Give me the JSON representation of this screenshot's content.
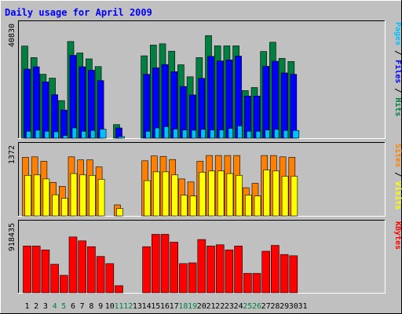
{
  "chart_data": {
    "type": "bar",
    "title": "Daily usage for April 2009",
    "days": [
      "1",
      "2",
      "3",
      "4",
      "5",
      "6",
      "7",
      "8",
      "9",
      "10",
      "11",
      "12",
      "13",
      "14",
      "15",
      "16",
      "17",
      "18",
      "19",
      "20",
      "21",
      "22",
      "23",
      "24",
      "25",
      "26",
      "27",
      "28",
      "29",
      "30",
      "31"
    ],
    "weekend_days": [
      4,
      5,
      11,
      12,
      18,
      19,
      25,
      26
    ],
    "panels": [
      {
        "id": "hits-files-pages",
        "max_label": "40830",
        "ymax": 40830,
        "legend": [
          "Pages",
          " / ",
          "Files",
          " / ",
          "Hits"
        ],
        "series": [
          {
            "name": "Hits",
            "color": "#008040",
            "values": [
              36000,
              31500,
              25000,
              23500,
              14700,
              37800,
              33300,
              31000,
              28000,
              null,
              5300,
              null,
              null,
              32200,
              36400,
              36900,
              34000,
              28700,
              24000,
              31500,
              40100,
              36100,
              36100,
              36100,
              18600,
              19800,
              33900,
              37500,
              31200,
              30000,
              null
            ]
          },
          {
            "name": "Files",
            "color": "#0000ff",
            "values": [
              27000,
              27900,
              22000,
              17000,
              11000,
              32400,
              27900,
              26600,
              22500,
              null,
              4000,
              null,
              null,
              25000,
              27500,
              28800,
              26000,
              20200,
              16900,
              23400,
              32000,
              30200,
              30600,
              32100,
              16500,
              16500,
              28100,
              30100,
              25500,
              25000,
              null
            ]
          },
          {
            "name": "Pages",
            "color": "#00c0ff",
            "values": [
              2700,
              3100,
              2700,
              2500,
              1000,
              4000,
              2700,
              3000,
              3500,
              null,
              600,
              null,
              null,
              2700,
              4000,
              4500,
              3500,
              3200,
              3100,
              3400,
              3200,
              3200,
              3800,
              4800,
              2700,
              2700,
              3200,
              3400,
              3000,
              3000,
              null
            ]
          }
        ]
      },
      {
        "id": "sites-visits",
        "max_label": "1372",
        "ymax": 1372,
        "legend": [
          "Sites",
          " / ",
          "Visits"
        ],
        "series": [
          {
            "name": "Sites",
            "color": "#ff8000",
            "values": [
              1330,
              1340,
              1240,
              760,
              670,
              1340,
              1270,
              1270,
              1110,
              null,
              250,
              null,
              null,
              1250,
              1360,
              1350,
              1280,
              840,
              770,
              1240,
              1370,
              1370,
              1370,
              1370,
              640,
              740,
              1370,
              1370,
              1340,
              1330,
              null
            ]
          },
          {
            "name": "Visits",
            "color": "#ffff00",
            "values": [
              920,
              930,
              840,
              480,
              400,
              960,
              930,
              920,
              830,
              null,
              170,
              null,
              null,
              800,
              1000,
              1000,
              930,
              470,
              450,
              990,
              1020,
              1020,
              960,
              920,
              470,
              450,
              1040,
              1020,
              900,
              900,
              null
            ]
          }
        ]
      },
      {
        "id": "kbytes",
        "max_label": "918435",
        "ymax": 918435,
        "legend": [
          "KBytes"
        ],
        "series": [
          {
            "name": "KBytes",
            "color": "#ff0000",
            "values": [
              720000,
              720000,
              660000,
              440000,
              270000,
              860000,
              800000,
              710000,
              560000,
              450000,
              110000,
              null,
              null,
              710000,
              900000,
              900000,
              780000,
              450000,
              460000,
              820000,
              720000,
              740000,
              660000,
              720000,
              300000,
              300000,
              640000,
              730000,
              590000,
              570000,
              null
            ]
          }
        ]
      }
    ]
  }
}
